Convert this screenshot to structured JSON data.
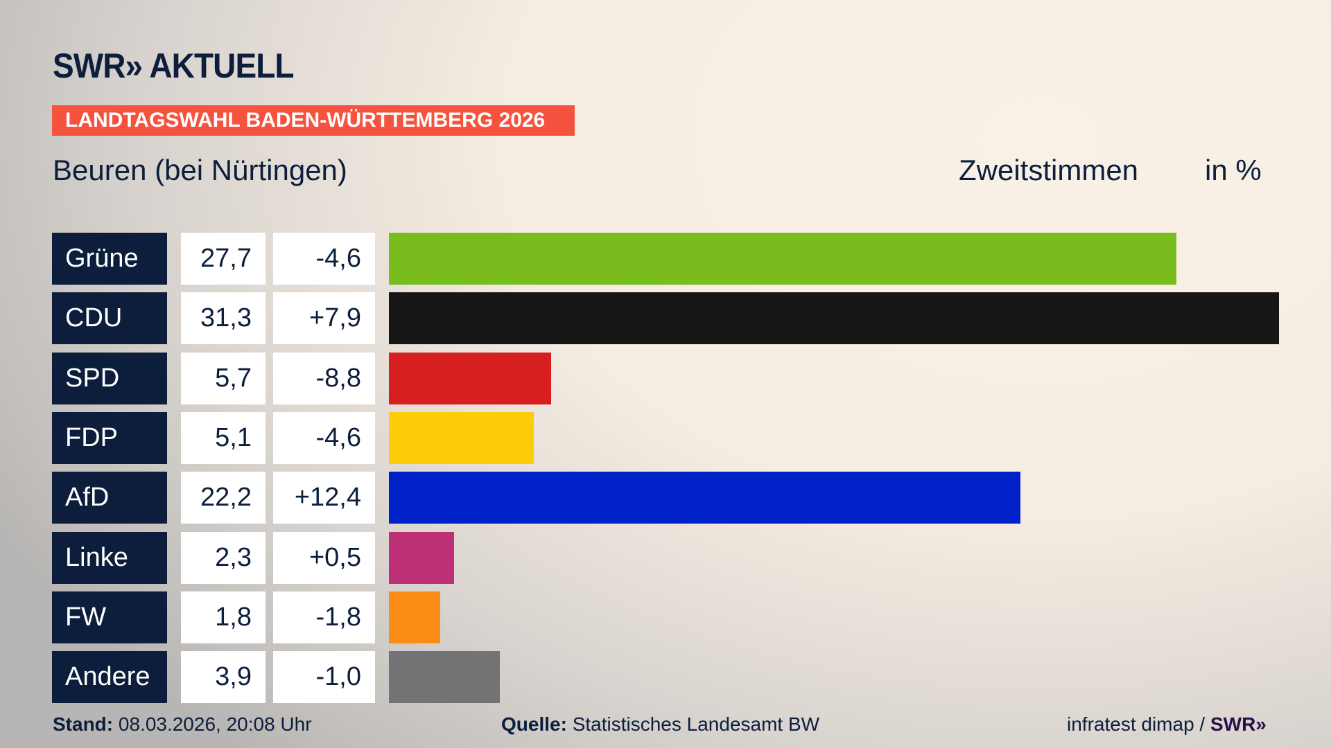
{
  "header": {
    "logo": "SWR» AKTUELL",
    "banner": "LANDTAGSWAHL BADEN-WÜRTTEMBERG 2026",
    "subtitle": "Beuren (bei Nürtingen)",
    "measure": "Zweitstimmen",
    "unit": "in %"
  },
  "chart_data": {
    "type": "bar",
    "orientation": "horizontal",
    "categories": [
      "Grüne",
      "CDU",
      "SPD",
      "FDP",
      "AfD",
      "Linke",
      "FW",
      "Andere"
    ],
    "values": [
      27.7,
      31.3,
      5.7,
      5.1,
      22.2,
      2.3,
      1.8,
      3.9
    ],
    "value_labels": [
      "27,7",
      "31,3",
      "5,7",
      "5,1",
      "22,2",
      "2,3",
      "1,8",
      "3,9"
    ],
    "changes": [
      -4.6,
      7.9,
      -8.8,
      -4.6,
      12.4,
      0.5,
      -1.8,
      -1.0
    ],
    "change_labels": [
      "-4,6",
      "+7,9",
      "-8,8",
      "-4,6",
      "+12,4",
      "+0,5",
      "-1,8",
      "-1,0"
    ],
    "colors": [
      "#79bc1e",
      "#161616",
      "#d71f1f",
      "#fdcd0a",
      "#0021c8",
      "#bd3075",
      "#fb8c15",
      "#737373"
    ],
    "xlim": [
      0,
      31.3
    ]
  },
  "footer": {
    "stand_label": "Stand:",
    "stand_value": "08.03.2026, 20:08 Uhr",
    "source_label": "Quelle:",
    "source_value": "Statistisches Landesamt BW",
    "credit": "infratest dimap /",
    "credit_logo": "SWR»"
  }
}
